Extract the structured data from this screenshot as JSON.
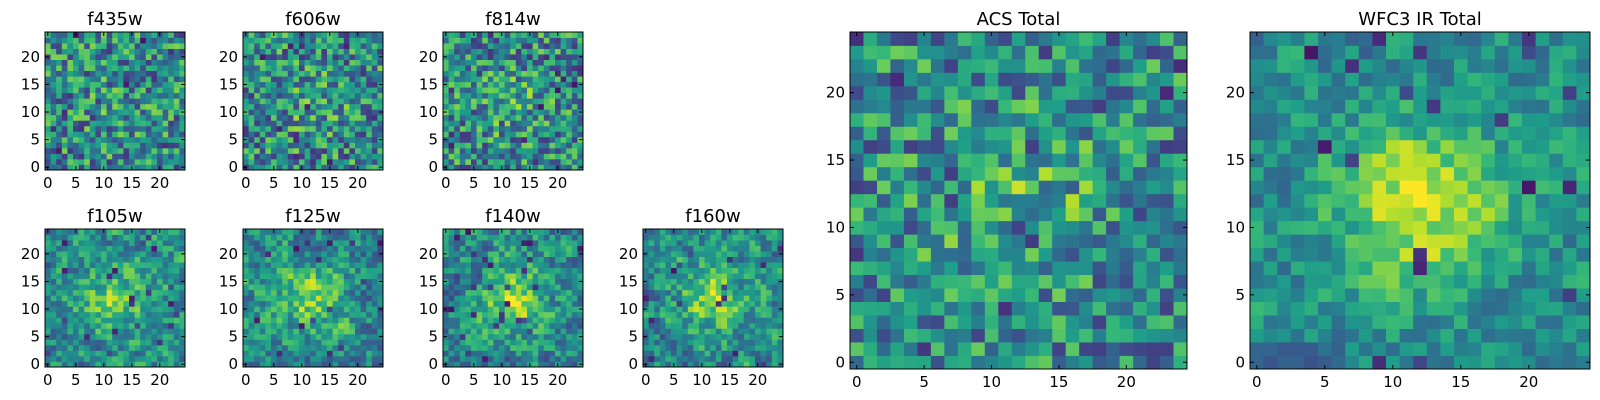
{
  "chart_data": [
    {
      "type": "heatmap",
      "title": "f435w",
      "grid_size": 25,
      "xticks": [
        "0",
        "5",
        "10",
        "15",
        "20"
      ],
      "yticks": [
        "0",
        "5",
        "10",
        "15",
        "20"
      ],
      "colormap": "viridis",
      "center_peak": 0.05,
      "noise": 0.55,
      "smooth": 0,
      "seed": 11
    },
    {
      "type": "heatmap",
      "title": "f606w",
      "grid_size": 25,
      "xticks": [
        "0",
        "5",
        "10",
        "15",
        "20"
      ],
      "yticks": [
        "0",
        "5",
        "10",
        "15",
        "20"
      ],
      "colormap": "viridis",
      "center_peak": 0.1,
      "noise": 0.55,
      "smooth": 0,
      "seed": 23
    },
    {
      "type": "heatmap",
      "title": "f814w",
      "grid_size": 25,
      "xticks": [
        "0",
        "5",
        "10",
        "15",
        "20"
      ],
      "yticks": [
        "0",
        "5",
        "10",
        "15",
        "20"
      ],
      "colormap": "viridis",
      "center_peak": 0.12,
      "noise": 0.55,
      "smooth": 0,
      "seed": 37
    },
    {
      "type": "heatmap",
      "title": "f105w",
      "grid_size": 25,
      "xticks": [
        "0",
        "5",
        "10",
        "15",
        "20"
      ],
      "yticks": [
        "0",
        "5",
        "10",
        "15",
        "20"
      ],
      "colormap": "viridis",
      "center_peak": 0.3,
      "noise": 0.6,
      "smooth": 1,
      "seed": 41
    },
    {
      "type": "heatmap",
      "title": "f125w",
      "grid_size": 25,
      "xticks": [
        "0",
        "5",
        "10",
        "15",
        "20"
      ],
      "yticks": [
        "0",
        "5",
        "10",
        "15",
        "20"
      ],
      "colormap": "viridis",
      "center_peak": 0.3,
      "noise": 0.6,
      "smooth": 1,
      "seed": 53
    },
    {
      "type": "heatmap",
      "title": "f140w",
      "grid_size": 25,
      "xticks": [
        "0",
        "5",
        "10",
        "15",
        "20"
      ],
      "yticks": [
        "0",
        "5",
        "10",
        "15",
        "20"
      ],
      "colormap": "viridis",
      "center_peak": 0.35,
      "noise": 0.6,
      "smooth": 1,
      "seed": 67
    },
    {
      "type": "heatmap",
      "title": "f160w",
      "grid_size": 25,
      "xticks": [
        "0",
        "5",
        "10",
        "15",
        "20"
      ],
      "yticks": [
        "0",
        "5",
        "10",
        "15",
        "20"
      ],
      "colormap": "viridis",
      "center_peak": 0.35,
      "noise": 0.6,
      "smooth": 1,
      "seed": 79
    },
    {
      "type": "heatmap",
      "title": "ACS Total",
      "grid_size": 25,
      "xticks": [
        "0",
        "5",
        "10",
        "15",
        "20"
      ],
      "yticks": [
        "0",
        "5",
        "10",
        "15",
        "20"
      ],
      "colormap": "viridis",
      "center_peak": 0.18,
      "noise": 0.5,
      "smooth": 0,
      "seed": 83
    },
    {
      "type": "heatmap",
      "title": "WFC3 IR Total",
      "grid_size": 25,
      "xticks": [
        "0",
        "5",
        "10",
        "15",
        "20"
      ],
      "yticks": [
        "0",
        "5",
        "10",
        "15",
        "20"
      ],
      "colormap": "viridis",
      "center_peak": 0.45,
      "noise": 0.45,
      "smooth": 1,
      "seed": 97
    }
  ]
}
